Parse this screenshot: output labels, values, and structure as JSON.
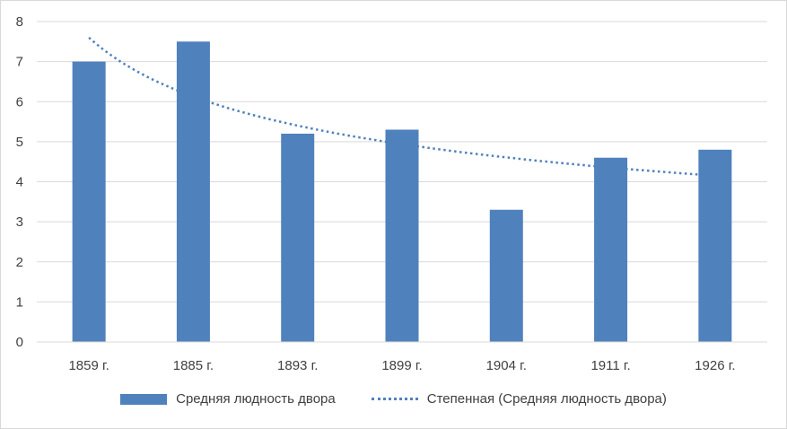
{
  "chart_data": {
    "type": "bar",
    "categories": [
      "1859 г.",
      "1885 г.",
      "1893 г.",
      "1899 г.",
      "1904 г.",
      "1911 г.",
      "1926 г."
    ],
    "series": [
      {
        "name": "Средняя людность двора",
        "values": [
          7.0,
          7.5,
          5.2,
          5.3,
          3.3,
          4.6,
          4.8
        ],
        "color": "#4f81bd"
      }
    ],
    "trendline": {
      "name": "Степенная (Средняя людность двора)",
      "type": "power",
      "values": [
        7.6,
        6.15,
        5.45,
        4.98,
        4.63,
        4.36,
        4.15
      ],
      "color": "#4f81bd"
    },
    "ylim": [
      0,
      8
    ],
    "yticks": [
      "0",
      "1",
      "2",
      "3",
      "4",
      "5",
      "6",
      "7",
      "8"
    ],
    "grid": true,
    "legend_position": "bottom"
  }
}
